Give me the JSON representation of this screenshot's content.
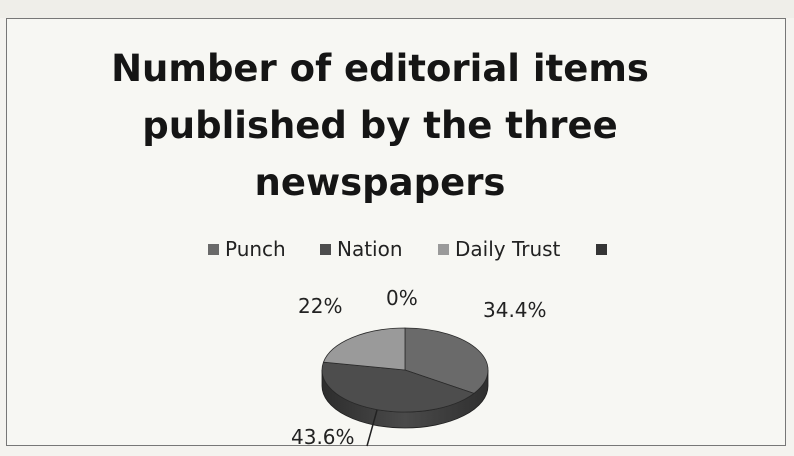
{
  "chart_data": {
    "type": "pie",
    "title": "Number of editorial items published by the three newspapers",
    "categories": [
      "Punch",
      "Nation",
      "Daily Trust",
      ""
    ],
    "values": [
      34.4,
      43.6,
      22,
      0
    ],
    "data_labels": [
      "34.4%",
      "43.6%",
      "22%",
      "0%"
    ],
    "legend_position": "top",
    "colors": [
      "#6a6a6a",
      "#4d4d4d",
      "#9a9a9a",
      "#353535"
    ]
  }
}
